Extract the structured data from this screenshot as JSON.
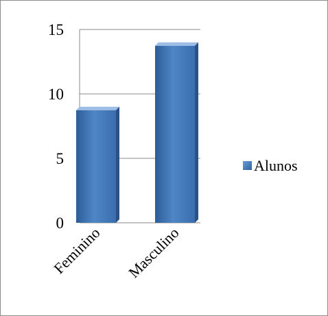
{
  "chart_data": {
    "type": "bar",
    "title": "",
    "xlabel": "",
    "ylabel": "",
    "categories": [
      "Feminino",
      "Masculino"
    ],
    "series": [
      {
        "name": "Alunos",
        "values": [
          9,
          14
        ],
        "color": "#4a7ebb"
      }
    ],
    "ylim": [
      0,
      15
    ],
    "yticks": [
      "0",
      "5",
      "10",
      "15"
    ],
    "grid": true,
    "legend_position": "right",
    "bar_style": "3d-gradient"
  }
}
